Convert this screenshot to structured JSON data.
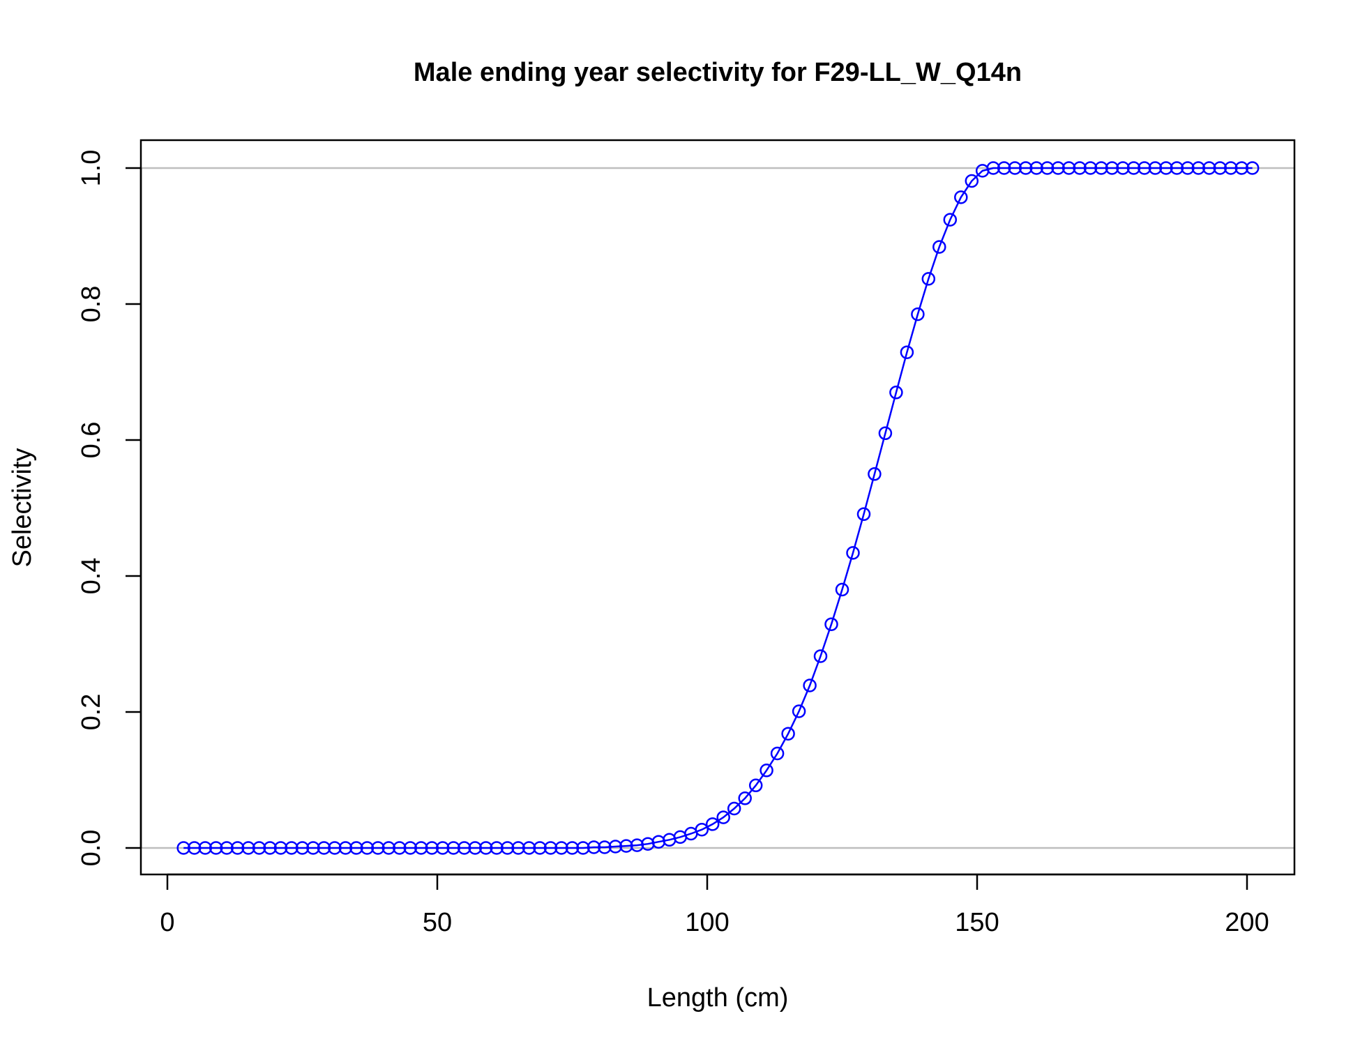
{
  "chart_data": {
    "type": "line",
    "title": "Male ending year selectivity for F29-LL_W_Q14n",
    "xlabel": "Length (cm)",
    "ylabel": "Selectivity",
    "xlim": [
      0,
      205
    ],
    "ylim": [
      0,
      1
    ],
    "x_ticks": [
      0,
      50,
      100,
      150,
      200
    ],
    "x_tick_labels": [
      "0",
      "50",
      "100",
      "150",
      "200"
    ],
    "y_ticks": [
      0,
      0.2,
      0.4,
      0.6,
      0.8,
      1.0
    ],
    "y_tick_labels": [
      "0.0",
      "0.2",
      "0.4",
      "0.6",
      "0.8",
      "1.0"
    ],
    "reference_lines": [
      0,
      1
    ],
    "grid": false,
    "legend": "none",
    "colors": {
      "series": "#0000ff",
      "reference": "#bebebe",
      "axes": "#000000"
    },
    "series": [
      {
        "marker": "open-circle",
        "x": [
          3,
          5,
          7,
          9,
          11,
          13,
          15,
          17,
          19,
          21,
          23,
          25,
          27,
          29,
          31,
          33,
          35,
          37,
          39,
          41,
          43,
          45,
          47,
          49,
          51,
          53,
          55,
          57,
          59,
          61,
          63,
          65,
          67,
          69,
          71,
          73,
          75,
          77,
          79,
          81,
          83,
          85,
          87,
          89,
          91,
          93,
          95,
          97,
          99,
          101,
          103,
          105,
          107,
          109,
          111,
          113,
          115,
          117,
          119,
          121,
          123,
          125,
          127,
          129,
          131,
          133,
          135,
          137,
          139,
          141,
          143,
          145,
          147,
          149,
          151,
          153,
          155,
          157,
          159,
          161,
          163,
          165,
          167,
          169,
          171,
          173,
          175,
          177,
          179,
          181,
          183,
          185,
          187,
          189,
          191,
          193,
          195,
          197,
          199,
          201
        ],
        "values": [
          0,
          0,
          0,
          0,
          0,
          0,
          0,
          0,
          0,
          0,
          0,
          0,
          0,
          0,
          0,
          0,
          0,
          0,
          0,
          0,
          0,
          0,
          0,
          0,
          0,
          0,
          0,
          0,
          0,
          0,
          0,
          0,
          0,
          0,
          0,
          0,
          0,
          0,
          0.001,
          0.001,
          0.002,
          0.003,
          0.004,
          0.006,
          0.009,
          0.012,
          0.016,
          0.021,
          0.027,
          0.035,
          0.045,
          0.058,
          0.073,
          0.092,
          0.114,
          0.139,
          0.168,
          0.201,
          0.239,
          0.282,
          0.329,
          0.38,
          0.434,
          0.491,
          0.55,
          0.61,
          0.67,
          0.729,
          0.785,
          0.837,
          0.884,
          0.924,
          0.957,
          0.981,
          0.996,
          1,
          1,
          1,
          1,
          1,
          1,
          1,
          1,
          1,
          1,
          1,
          1,
          1,
          1,
          1,
          1,
          1,
          1,
          1,
          1,
          1,
          1,
          1,
          1,
          1
        ]
      }
    ]
  }
}
